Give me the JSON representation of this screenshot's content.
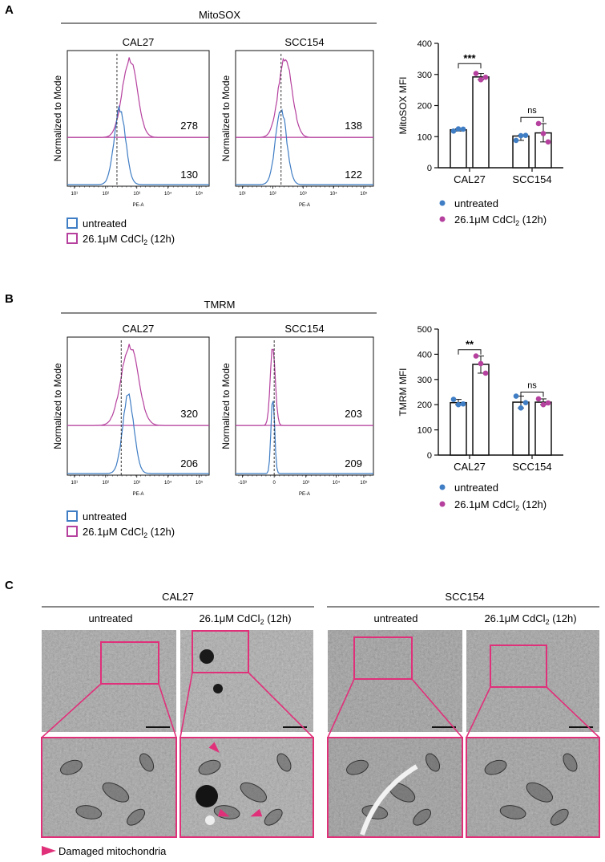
{
  "colors": {
    "untreated": "#3f7dc4",
    "cdcl2": "#b5409e",
    "box_magenta": "#e0307a",
    "axis": "#111111"
  },
  "panels": {
    "A": {
      "label": "A",
      "group_title": "MitoSOX",
      "histograms": [
        {
          "title": "CAL27",
          "ylabel": "Normalized to Mode",
          "xlabel": "PE-A",
          "tick_labels": [
            "10¹",
            "10²",
            "10³",
            "10⁴",
            "10⁵"
          ],
          "mfi_treated": "278",
          "mfi_untreated": "130"
        },
        {
          "title": "SCC154",
          "ylabel": "Normalized to Mode",
          "xlabel": "PE-A",
          "tick_labels": [
            "10¹",
            "10²",
            "10³",
            "10⁴",
            "10⁵"
          ],
          "mfi_treated": "138",
          "mfi_untreated": "122"
        }
      ],
      "legend": [
        {
          "label": "untreated",
          "sub": "",
          "tail": ""
        },
        {
          "label": "26.1μM CdCl",
          "sub": "2",
          "tail": " (12h)"
        }
      ],
      "bar_legend": [
        {
          "label": "untreated",
          "sub": "",
          "tail": ""
        },
        {
          "label": "26.1μM CdCl",
          "sub": "2",
          "tail": " (12h)"
        }
      ]
    },
    "B": {
      "label": "B",
      "group_title": "TMRM",
      "histograms": [
        {
          "title": "CAL27",
          "ylabel": "Normalized to Mode",
          "xlabel": "PE-A",
          "tick_labels": [
            "10¹",
            "10²",
            "10³",
            "10⁴",
            "10⁵"
          ],
          "mfi_treated": "320",
          "mfi_untreated": "206"
        },
        {
          "title": "SCC154",
          "ylabel": "Normalized to Mode",
          "xlabel": "PE-A",
          "tick_labels": [
            "-10³",
            "0",
            "10³",
            "10⁴",
            "10⁵"
          ],
          "mfi_treated": "203",
          "mfi_untreated": "209"
        }
      ],
      "legend": [
        {
          "label": "untreated",
          "sub": "",
          "tail": ""
        },
        {
          "label": "26.1μM CdCl",
          "sub": "2",
          "tail": " (12h)"
        }
      ],
      "bar_legend": [
        {
          "label": "untreated",
          "sub": "",
          "tail": ""
        },
        {
          "label": "26.1μM CdCl",
          "sub": "2",
          "tail": " (12h)"
        }
      ]
    },
    "C": {
      "label": "C",
      "groups": [
        {
          "title": "CAL27",
          "columns": [
            {
              "label": "untreated",
              "sub": "",
              "tail": ""
            },
            {
              "label": "26.1μM CdCl",
              "sub": "2",
              "tail": " (12h)"
            }
          ]
        },
        {
          "title": "SCC154",
          "columns": [
            {
              "label": "untreated",
              "sub": "",
              "tail": ""
            },
            {
              "label": "26.1μM CdCl",
              "sub": "2",
              "tail": " (12h)"
            }
          ]
        }
      ],
      "arrow_legend": "Damaged mitochondria"
    }
  },
  "chart_data": [
    {
      "type": "bar",
      "ylabel": "MitoSOX MFI",
      "categories": [
        "CAL27",
        "SCC154"
      ],
      "ylim": [
        0,
        400
      ],
      "yticks": [
        0,
        100,
        200,
        300,
        400
      ],
      "series": [
        {
          "name": "untreated",
          "values": [
            122,
            102
          ],
          "points": [
            [
              118,
              125,
              124
            ],
            [
              88,
              103,
              104
            ]
          ]
        },
        {
          "name": "26.1μM CdCl2 (12h)",
          "values": [
            292,
            112
          ],
          "points": [
            [
              303,
              283,
              291
            ],
            [
              142,
              110,
              83
            ]
          ]
        }
      ],
      "significance": [
        "***",
        "ns"
      ]
    },
    {
      "type": "bar",
      "ylabel": "TMRM MFI",
      "categories": [
        "CAL27",
        "SCC154"
      ],
      "ylim": [
        0,
        500
      ],
      "yticks": [
        0,
        100,
        200,
        300,
        400,
        500
      ],
      "series": [
        {
          "name": "untreated",
          "values": [
            208,
            210
          ],
          "points": [
            [
              221,
              200,
              203
            ],
            [
              234,
              187,
              208
            ]
          ]
        },
        {
          "name": "26.1μM CdCl2 (12h)",
          "values": [
            360,
            210
          ],
          "points": [
            [
              393,
              363,
              325
            ],
            [
              223,
              200,
              207
            ]
          ]
        }
      ],
      "significance": [
        "**",
        "ns"
      ]
    }
  ]
}
